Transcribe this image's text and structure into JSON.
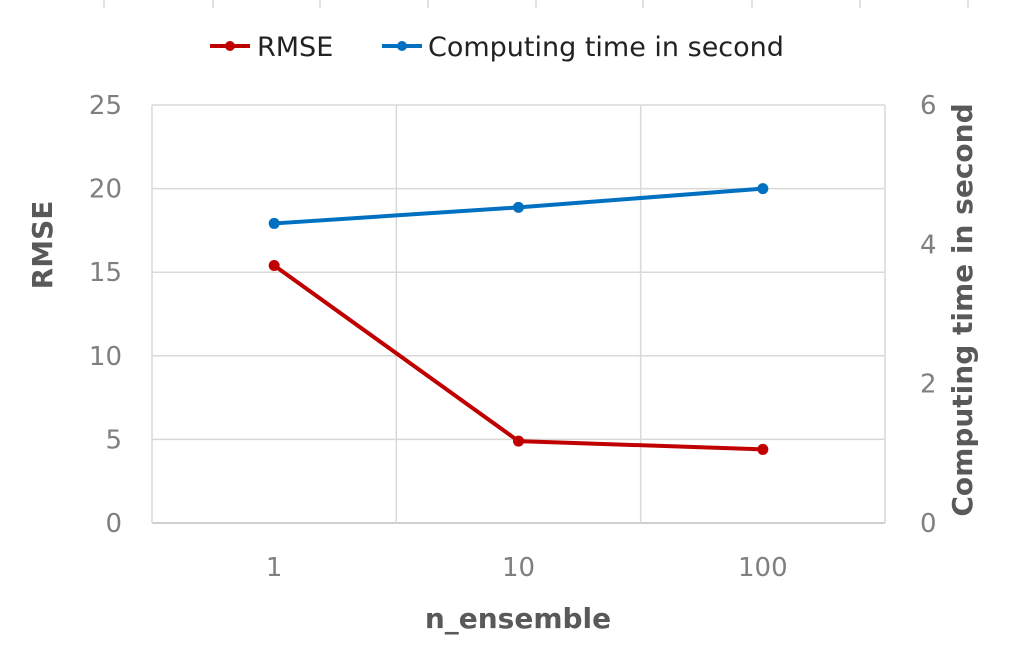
{
  "chart_data": {
    "type": "line",
    "categories": [
      "1",
      "10",
      "100"
    ],
    "xlabel": "n_ensemble",
    "ylabel": "RMSE",
    "y2label": "Computing time in second",
    "ylim": [
      0,
      25
    ],
    "y2lim": [
      0,
      6
    ],
    "yticks": [
      "0",
      "5",
      "10",
      "15",
      "20",
      "25"
    ],
    "y2ticks": [
      "0",
      "2",
      "4",
      "6"
    ],
    "grid": true,
    "legend_position": "top",
    "series": [
      {
        "name": "RMSE",
        "axis": "left",
        "color": "#c00000",
        "values": [
          15.4,
          4.9,
          4.4
        ]
      },
      {
        "name": "Computing time in second",
        "axis": "right",
        "color": "#0070c0",
        "values": [
          4.3,
          4.53,
          4.8
        ]
      }
    ]
  }
}
